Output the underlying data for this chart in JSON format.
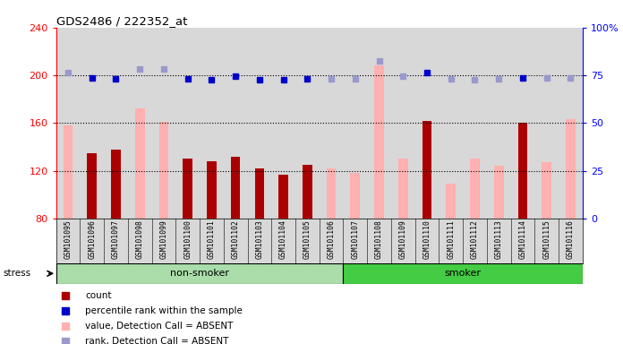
{
  "title": "GDS2486 / 222352_at",
  "samples": [
    "GSM101095",
    "GSM101096",
    "GSM101097",
    "GSM101098",
    "GSM101099",
    "GSM101100",
    "GSM101101",
    "GSM101102",
    "GSM101103",
    "GSM101104",
    "GSM101105",
    "GSM101106",
    "GSM101107",
    "GSM101108",
    "GSM101109",
    "GSM101110",
    "GSM101111",
    "GSM101112",
    "GSM101113",
    "GSM101114",
    "GSM101115",
    "GSM101116"
  ],
  "non_smoker_count": 12,
  "smoker_count": 10,
  "red_bars": [
    null,
    135,
    138,
    null,
    null,
    130,
    128,
    132,
    122,
    117,
    125,
    null,
    null,
    null,
    null,
    162,
    null,
    null,
    null,
    160,
    null,
    null
  ],
  "pink_bars": [
    158,
    null,
    null,
    172,
    161,
    null,
    null,
    null,
    null,
    null,
    null,
    122,
    118,
    208,
    130,
    null,
    109,
    130,
    124,
    null,
    127,
    163
  ],
  "blue_squares_y": [
    null,
    198,
    197,
    null,
    null,
    197,
    196,
    199,
    196,
    196,
    197,
    null,
    null,
    null,
    null,
    202,
    null,
    null,
    null,
    198,
    null,
    null
  ],
  "light_blue_squares_y": [
    202,
    null,
    null,
    205,
    205,
    null,
    null,
    null,
    null,
    null,
    null,
    197,
    197,
    212,
    199,
    null,
    197,
    196,
    197,
    null,
    198,
    198
  ],
  "left_ylim": [
    80,
    240
  ],
  "left_yticks": [
    80,
    120,
    160,
    200,
    240
  ],
  "right_ytick_pcts": [
    0,
    25,
    50,
    75,
    100
  ],
  "right_yticklabels": [
    "0",
    "25",
    "50",
    "75",
    "100%"
  ],
  "dotted_lines": [
    120,
    160,
    200
  ],
  "red_bar_color": "#aa0000",
  "pink_bar_color": "#ffb0b0",
  "blue_sq_color": "#0000cc",
  "light_blue_sq_color": "#9999cc",
  "non_smoker_bg": "#aaddaa",
  "smoker_bg": "#44cc44",
  "col_bg_color": "#d8d8d8",
  "bar_width": 0.4,
  "legend_labels": [
    "count",
    "percentile rank within the sample",
    "value, Detection Call = ABSENT",
    "rank, Detection Call = ABSENT"
  ]
}
